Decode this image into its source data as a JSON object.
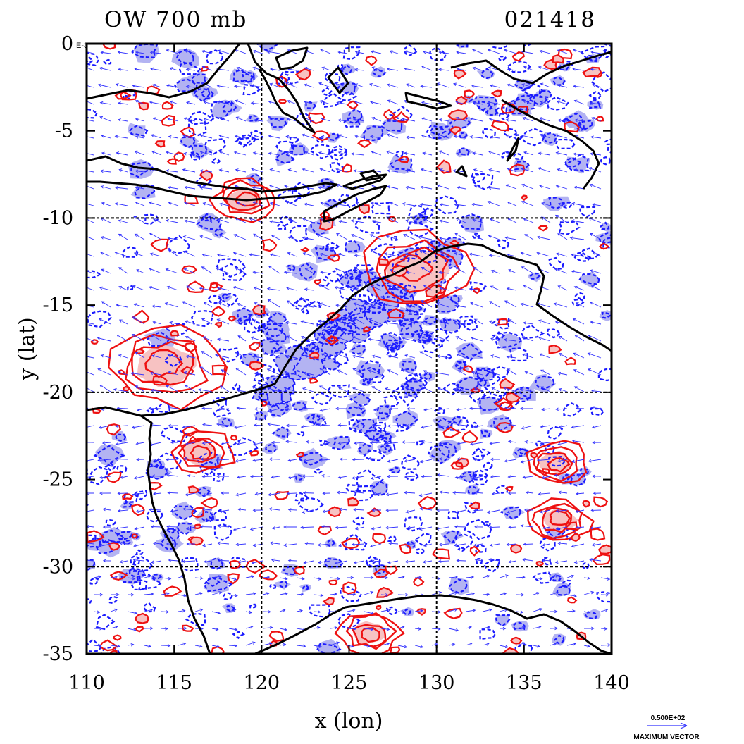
{
  "title": {
    "left": "OW 700 mb",
    "right": "021418"
  },
  "axes": {
    "xlabel": "x (lon)",
    "ylabel": "y (lat)",
    "xlim": [
      110,
      140
    ],
    "ylim": [
      -35,
      0
    ],
    "xticks": [
      "110",
      "115",
      "120",
      "125",
      "130",
      "135",
      "140"
    ],
    "yticks": [
      "0",
      "-5",
      "-10",
      "-15",
      "-20",
      "-25",
      "-30",
      "-35"
    ],
    "y_top_suffix": "E-3",
    "grid_lon": [
      120,
      130
    ],
    "grid_lat": [
      -10,
      -20,
      -30
    ]
  },
  "legend": {
    "magnitude": "0.500E+02",
    "label": "MAXIMUM VECTOR"
  },
  "colors": {
    "negative_contour": "#1a1aff",
    "negative_fill": "#b3b3f2",
    "positive_contour": "#ee1111",
    "positive_fill": "#f7c2c2",
    "vector": "#3333ff",
    "coastline": "#000000"
  },
  "chart_data": {
    "type": "map",
    "title": "OW 700 mb",
    "time_label": "021418",
    "features": {
      "positive_centers": [
        {
          "lon": 114.5,
          "lat": -18.5
        },
        {
          "lon": 128.8,
          "lat": -13.0
        },
        {
          "lon": 136.8,
          "lat": -24.0
        },
        {
          "lon": 137.0,
          "lat": -27.3
        },
        {
          "lon": 116.5,
          "lat": -23.5
        },
        {
          "lon": 126.2,
          "lat": -33.8
        },
        {
          "lon": 119.0,
          "lat": -9.0
        }
      ],
      "negative_regions": [
        {
          "lon": 122.5,
          "lat": -17.5
        },
        {
          "lon": 126.0,
          "lat": -13.5
        },
        {
          "lon": 132.0,
          "lat": -20.5
        },
        {
          "lon": 128.0,
          "lat": -25.5
        },
        {
          "lon": 113.0,
          "lat": -28.0
        },
        {
          "lon": 136.5,
          "lat": -3.5
        },
        {
          "lon": 121.0,
          "lat": -2.0
        }
      ]
    }
  }
}
